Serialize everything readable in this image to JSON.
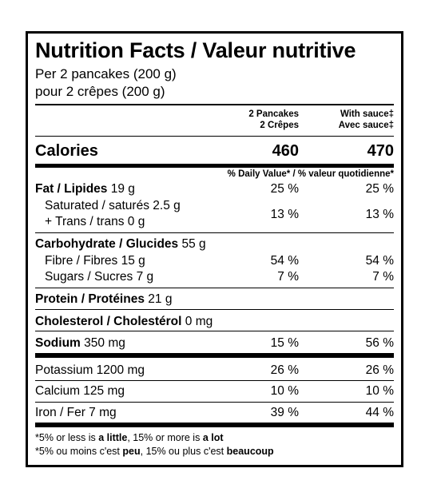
{
  "title": "Nutrition Facts / Valeur nutritive",
  "serving_en": "Per 2 pancakes (200 g)",
  "serving_fr": "pour 2 crêpes (200 g)",
  "col1_header_en": "2 Pancakes",
  "col1_header_fr": "2 Crêpes",
  "col2_header_en": "With sauce‡",
  "col2_header_fr": "Avec sauce‡",
  "calories_label": "Calories",
  "calories_col1": "460",
  "calories_col2": "470",
  "dv_header": "% Daily Value* / % valeur quotidienne*",
  "nutrients": {
    "fat": {
      "label": "Fat / Lipides",
      "amount": "19 g",
      "col1": "25 %",
      "col2": "25 %"
    },
    "saturated": {
      "label": "Saturated / saturés 2.5 g"
    },
    "trans": {
      "label": "+ Trans / trans 0 g",
      "col1": "13 %",
      "col2": "13 %"
    },
    "carb": {
      "label": "Carbohydrate / Glucides",
      "amount": "55 g"
    },
    "fibre": {
      "label": "Fibre / Fibres 15 g",
      "col1": "54 %",
      "col2": "54 %"
    },
    "sugars": {
      "label": "Sugars / Sucres 7 g",
      "col1": "7 %",
      "col2": "7 %"
    },
    "protein": {
      "label": "Protein / Protéines",
      "amount": "21 g"
    },
    "cholesterol": {
      "label": "Cholesterol / Cholestérol",
      "amount": "0 mg"
    },
    "sodium": {
      "label": "Sodium",
      "amount": "350 mg",
      "col1": "15 %",
      "col2": "56 %"
    },
    "potassium": {
      "label": "Potassium 1200 mg",
      "col1": "26 %",
      "col2": "26 %"
    },
    "calcium": {
      "label": "Calcium 125 mg",
      "col1": "10 %",
      "col2": "10 %"
    },
    "iron": {
      "label": "Iron / Fer 7 mg",
      "col1": "39 %",
      "col2": "44 %"
    }
  },
  "footnote_en": {
    "pre": "*5% or less is ",
    "b1": "a little",
    "mid": ", 15% or more is ",
    "b2": "a lot"
  },
  "footnote_fr": {
    "pre": "*5% ou moins c'est ",
    "b1": "peu",
    "mid": ", 15% ou plus c'est ",
    "b2": "beaucoup"
  }
}
